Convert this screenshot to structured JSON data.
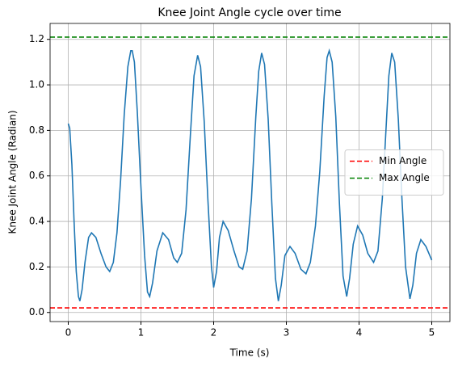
{
  "chart_data": {
    "type": "line",
    "title": "Knee Joint Angle cycle over time",
    "xlabel": "Time (s)",
    "ylabel": "Knee Joint Angle (Radian)",
    "x": [
      0,
      0.02,
      0.05,
      0.08,
      0.11,
      0.14,
      0.16,
      0.19,
      0.23,
      0.28,
      0.32,
      0.38,
      0.45,
      0.52,
      0.57,
      0.62,
      0.67,
      0.72,
      0.77,
      0.82,
      0.86,
      0.88,
      0.91,
      0.95,
      1.0,
      1.05,
      1.09,
      1.12,
      1.16,
      1.22,
      1.3,
      1.38,
      1.45,
      1.5,
      1.56,
      1.62,
      1.68,
      1.73,
      1.78,
      1.82,
      1.87,
      1.92,
      1.97,
      2.0,
      2.04,
      2.08,
      2.13,
      2.2,
      2.28,
      2.35,
      2.4,
      2.46,
      2.52,
      2.58,
      2.62,
      2.66,
      2.7,
      2.75,
      2.8,
      2.85,
      2.89,
      2.93,
      2.98,
      3.05,
      3.12,
      3.2,
      3.27,
      3.33,
      3.4,
      3.46,
      3.52,
      3.56,
      3.59,
      3.63,
      3.68,
      3.73,
      3.78,
      3.83,
      3.87,
      3.92,
      3.98,
      4.05,
      4.12,
      4.2,
      4.26,
      4.32,
      4.37,
      4.41,
      4.45,
      4.49,
      4.54,
      4.59,
      4.64,
      4.7,
      4.74,
      4.79,
      4.85,
      4.92,
      5.0
    ],
    "series": [
      {
        "color": "#1f77b4",
        "values": [
          0.83,
          0.81,
          0.65,
          0.4,
          0.18,
          0.07,
          0.05,
          0.1,
          0.22,
          0.33,
          0.35,
          0.33,
          0.26,
          0.2,
          0.18,
          0.22,
          0.35,
          0.58,
          0.87,
          1.08,
          1.15,
          1.15,
          1.1,
          0.88,
          0.55,
          0.25,
          0.09,
          0.07,
          0.13,
          0.27,
          0.35,
          0.32,
          0.24,
          0.22,
          0.26,
          0.45,
          0.78,
          1.04,
          1.13,
          1.08,
          0.84,
          0.5,
          0.2,
          0.11,
          0.18,
          0.33,
          0.4,
          0.36,
          0.27,
          0.2,
          0.19,
          0.27,
          0.5,
          0.86,
          1.06,
          1.14,
          1.09,
          0.85,
          0.48,
          0.15,
          0.05,
          0.12,
          0.25,
          0.29,
          0.26,
          0.19,
          0.17,
          0.22,
          0.38,
          0.62,
          0.95,
          1.12,
          1.15,
          1.1,
          0.86,
          0.48,
          0.16,
          0.07,
          0.15,
          0.3,
          0.38,
          0.34,
          0.26,
          0.22,
          0.27,
          0.5,
          0.8,
          1.04,
          1.14,
          1.1,
          0.85,
          0.5,
          0.2,
          0.06,
          0.12,
          0.26,
          0.32,
          0.29,
          0.23
        ]
      }
    ],
    "hlines": [
      {
        "name": "Min Angle",
        "value": 0.02,
        "color": "#ff0000"
      },
      {
        "name": "Max Angle",
        "value": 1.21,
        "color": "#008000"
      }
    ],
    "xlim": [
      -0.25,
      5.25
    ],
    "xticks": [
      0,
      1,
      2,
      3,
      4,
      5
    ],
    "ylim": [
      -0.04,
      1.27
    ],
    "yticks": [
      {
        "value": 0,
        "label": "0.0"
      },
      0.2,
      0.4,
      0.6,
      0.8,
      {
        "value": 1,
        "label": "1.0"
      },
      1.2
    ],
    "grid": true,
    "legend": "center right"
  }
}
